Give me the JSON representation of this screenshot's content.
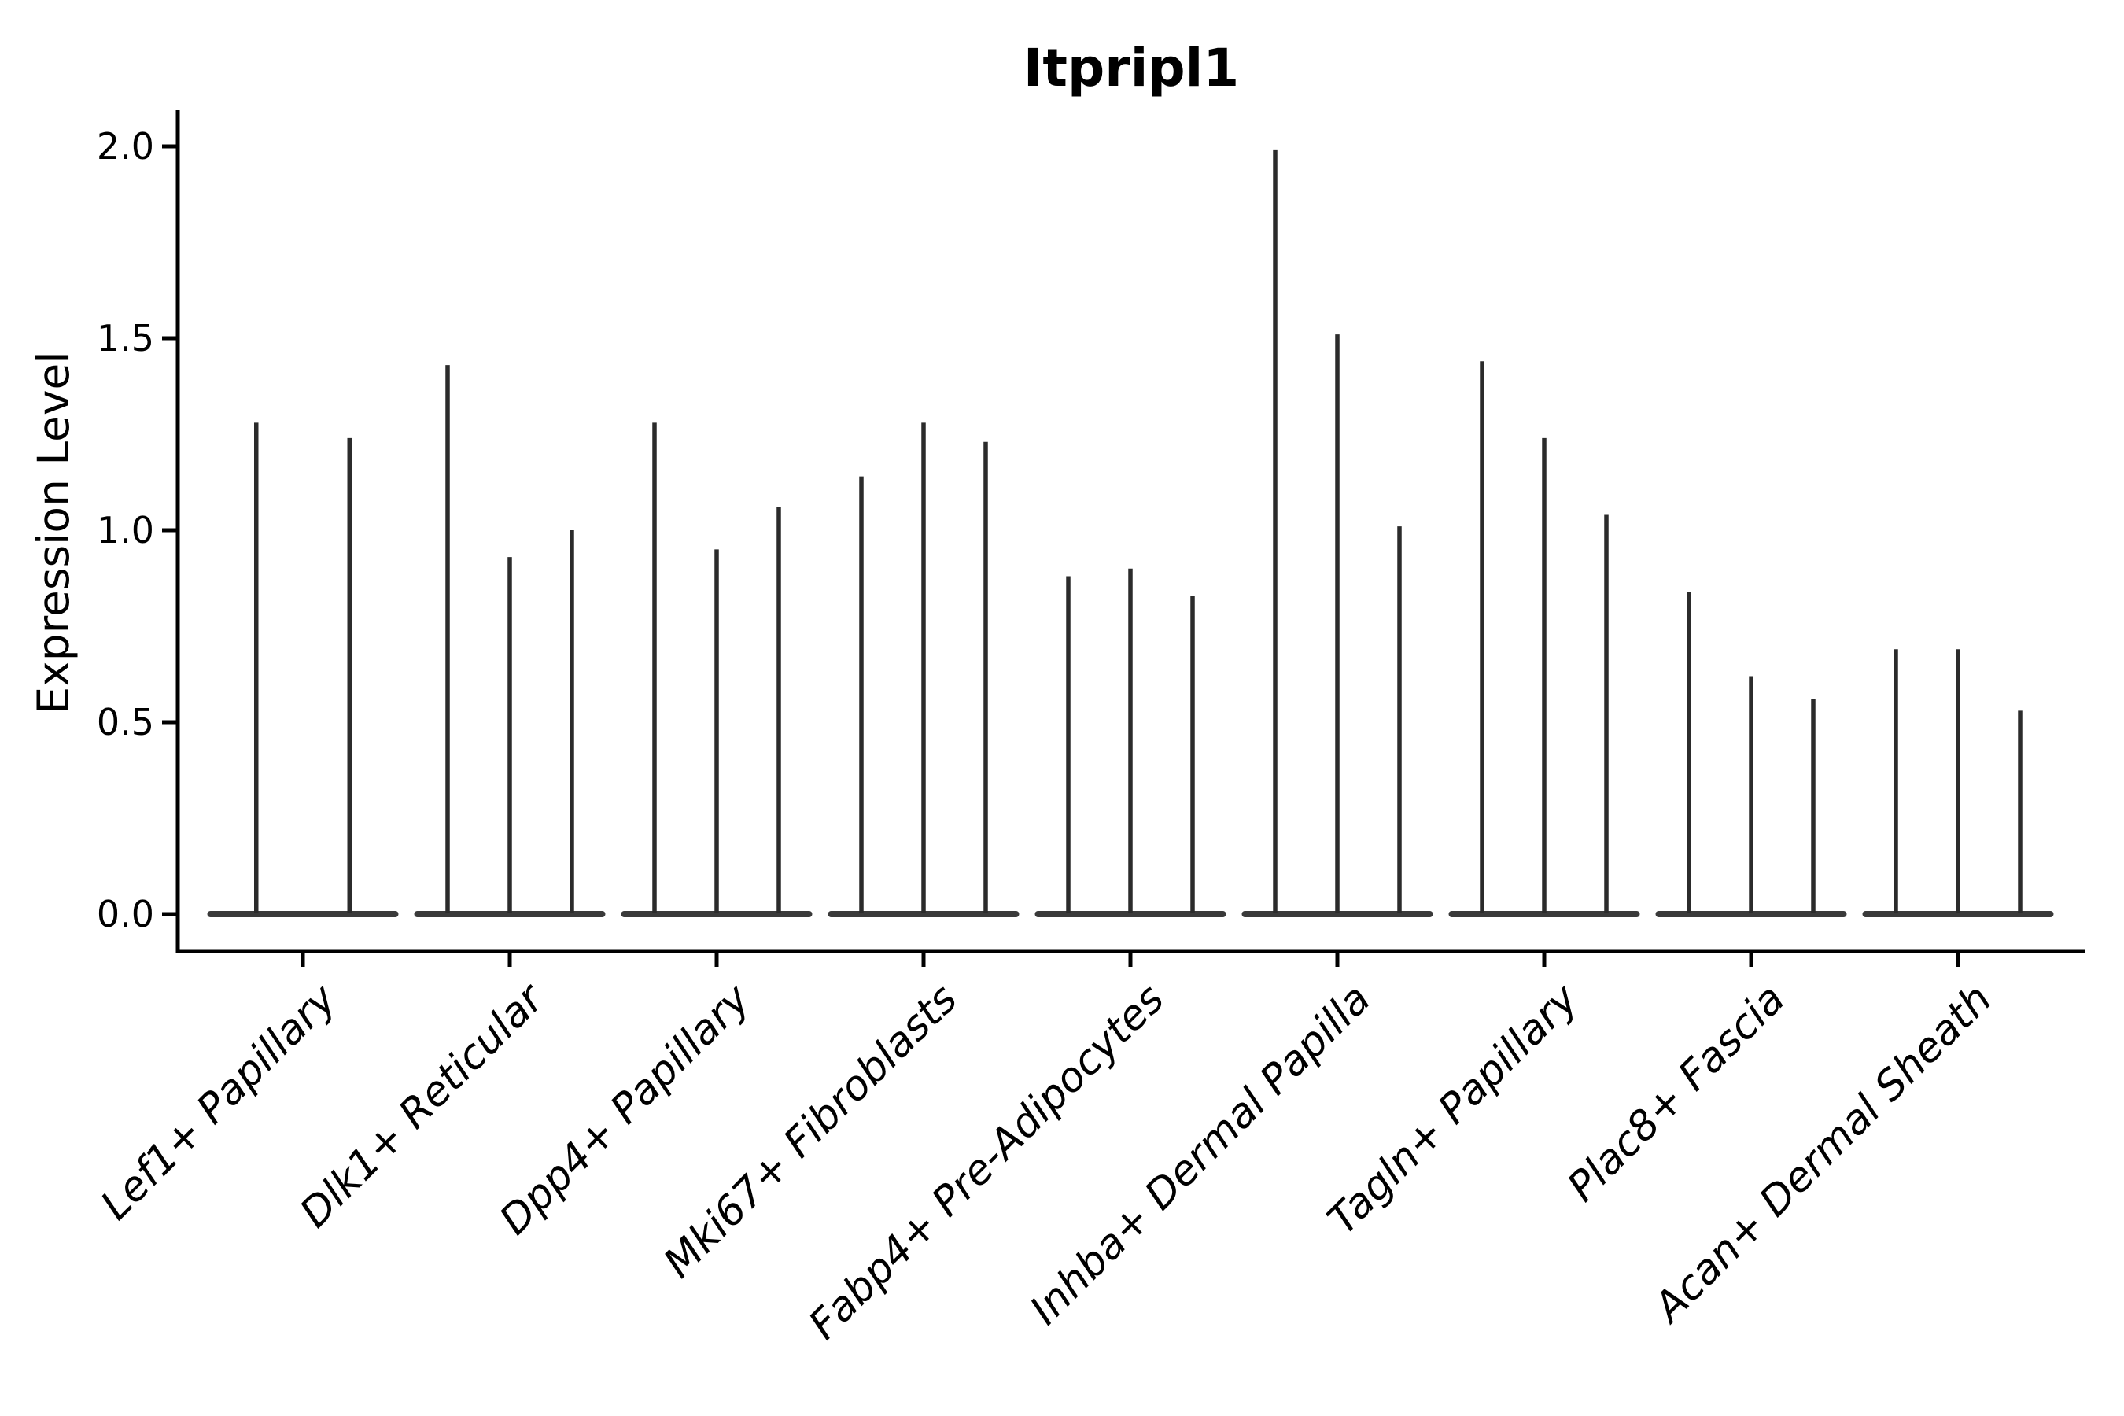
{
  "title": "Itpripl1",
  "y_axis": {
    "label": "Expression Level",
    "tick_labels": [
      "0.0",
      "0.5",
      "1.0",
      "1.5",
      "2.0"
    ],
    "tick_values": [
      0.0,
      0.5,
      1.0,
      1.5,
      2.0
    ]
  },
  "chart_data": {
    "type": "violin",
    "title": "Itpripl1",
    "xlabel": "",
    "ylabel": "Expression Level",
    "ylim": [
      0,
      2.09
    ],
    "yticks": [
      0.0,
      0.5,
      1.0,
      1.5,
      2.0
    ],
    "grid": false,
    "legend": null,
    "orientation": "vertical",
    "description": "Violin plot of Itpripl1 expression per fibroblast subtype; each category contains multiple extremely thin violins (flat body at 0 with a thin spike up to the max expression value).",
    "categories": [
      "Lef1+ Papillary",
      "Dlk1+ Reticular",
      "Dpp4+ Papillary",
      "Mki67+ Fibroblasts",
      "Fabp4+ Pre-Adipocytes",
      "Inhba+ Dermal Papilla",
      "Tagln+ Papillary",
      "Plac8+ Fascia",
      "Acan+ Dermal Sheath"
    ],
    "violin_baseline_value": 0.0,
    "groups": [
      {
        "category": "Lef1+ Papillary",
        "violin_max_values": [
          1.28,
          1.24
        ]
      },
      {
        "category": "Dlk1+ Reticular",
        "violin_max_values": [
          1.43,
          0.93,
          1.0
        ]
      },
      {
        "category": "Dpp4+ Papillary",
        "violin_max_values": [
          1.28,
          0.95,
          1.06
        ]
      },
      {
        "category": "Mki67+ Fibroblasts",
        "violin_max_values": [
          1.14,
          1.28,
          1.23
        ]
      },
      {
        "category": "Fabp4+ Pre-Adipocytes",
        "violin_max_values": [
          0.88,
          0.9,
          0.83
        ]
      },
      {
        "category": "Inhba+ Dermal Papilla",
        "violin_max_values": [
          1.99,
          1.51,
          1.01
        ]
      },
      {
        "category": "Tagln+ Papillary",
        "violin_max_values": [
          1.44,
          1.24,
          1.04
        ]
      },
      {
        "category": "Plac8+ Fascia",
        "violin_max_values": [
          0.84,
          0.62,
          0.56
        ]
      },
      {
        "category": "Acan+ Dermal Sheath",
        "violin_max_values": [
          0.69,
          0.69,
          0.53
        ]
      }
    ]
  },
  "colors": {
    "spike": "#2b2b2b",
    "violin_body": "#3a3a3a",
    "axis": "#000000",
    "text": "#000000",
    "background": "#ffffff"
  }
}
